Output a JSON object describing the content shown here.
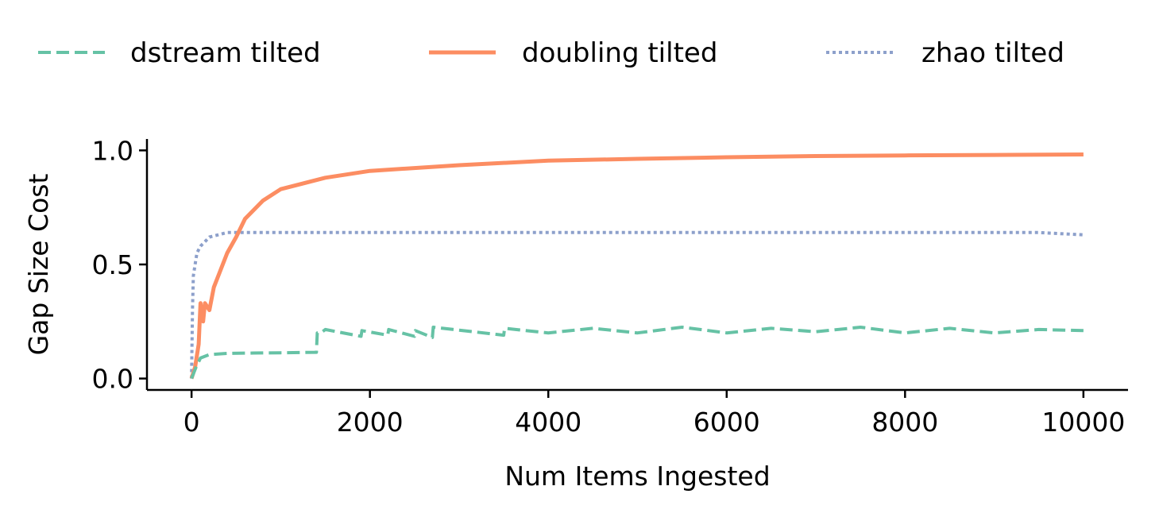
{
  "chart_data": {
    "type": "line",
    "title": "",
    "xlabel": "Num Items Ingested",
    "ylabel": "Gap Size Cost",
    "xlim": [
      -500,
      10500
    ],
    "ylim": [
      -0.05,
      1.05
    ],
    "xticks": [
      0,
      2000,
      4000,
      6000,
      8000,
      10000
    ],
    "xtick_labels": [
      "0",
      "2000",
      "4000",
      "6000",
      "8000",
      "10000"
    ],
    "yticks": [
      0.0,
      0.5,
      1.0
    ],
    "ytick_labels": [
      "0.0",
      "0.5",
      "1.0"
    ],
    "grid": false,
    "legend_position": "top",
    "series": [
      {
        "name": "dstream tilted",
        "color": "#66c2a5",
        "dash": "dashed",
        "x": [
          0,
          50,
          100,
          200,
          400,
          700,
          1000,
          1400,
          1410,
          1450,
          1500,
          1900,
          1910,
          2200,
          2210,
          2500,
          2510,
          2700,
          2710,
          3500,
          3510,
          4000,
          4500,
          5000,
          5500,
          6000,
          6500,
          7000,
          7500,
          8000,
          8500,
          9000,
          9500,
          10000
        ],
        "values": [
          0.0,
          0.05,
          0.09,
          0.105,
          0.11,
          0.112,
          0.113,
          0.115,
          0.2,
          0.2,
          0.215,
          0.185,
          0.21,
          0.19,
          0.215,
          0.185,
          0.21,
          0.18,
          0.225,
          0.19,
          0.22,
          0.2,
          0.22,
          0.2,
          0.225,
          0.2,
          0.22,
          0.205,
          0.225,
          0.2,
          0.22,
          0.2,
          0.215,
          0.21
        ]
      },
      {
        "name": "doubling tilted",
        "color": "#fc8d62",
        "dash": "solid",
        "x": [
          0,
          40,
          80,
          100,
          130,
          150,
          200,
          250,
          300,
          400,
          500,
          600,
          800,
          1000,
          1500,
          2000,
          3000,
          4000,
          5000,
          6000,
          7000,
          8000,
          9000,
          10000
        ],
        "values": [
          0.0,
          0.05,
          0.15,
          0.33,
          0.25,
          0.33,
          0.3,
          0.4,
          0.45,
          0.55,
          0.62,
          0.7,
          0.78,
          0.83,
          0.88,
          0.91,
          0.935,
          0.955,
          0.963,
          0.97,
          0.975,
          0.978,
          0.98,
          0.982
        ]
      },
      {
        "name": "zhao tilted",
        "color": "#8da0cb",
        "dash": "dotted",
        "x": [
          0,
          10,
          20,
          40,
          60,
          100,
          150,
          200,
          300,
          400,
          600,
          800,
          1000,
          1500,
          2000,
          2500,
          3000,
          3500,
          4000,
          4500,
          5000,
          5500,
          6000,
          6500,
          7000,
          7500,
          8000,
          8500,
          9000,
          9500,
          10000
        ],
        "values": [
          0.0,
          0.3,
          0.45,
          0.5,
          0.55,
          0.58,
          0.6,
          0.62,
          0.63,
          0.64,
          0.64,
          0.64,
          0.64,
          0.64,
          0.64,
          0.64,
          0.64,
          0.64,
          0.64,
          0.64,
          0.64,
          0.64,
          0.64,
          0.64,
          0.64,
          0.64,
          0.64,
          0.64,
          0.64,
          0.64,
          0.63
        ]
      }
    ]
  }
}
